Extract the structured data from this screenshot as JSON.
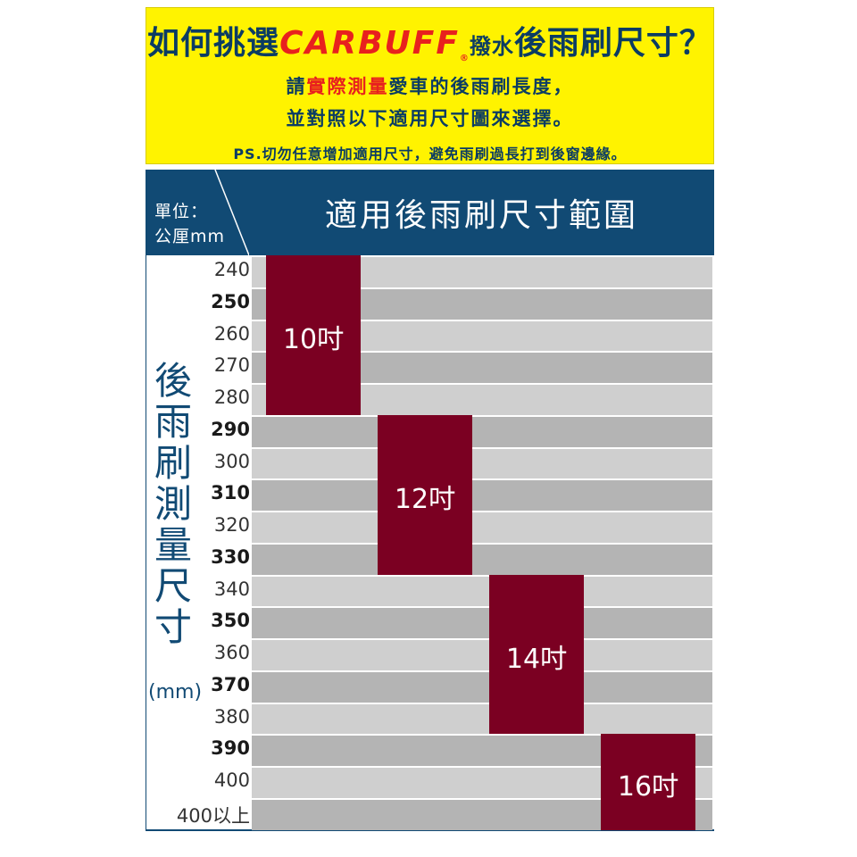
{
  "header": {
    "title_pre": "如何挑選",
    "brand": "CARBUFF",
    "brand_mark": "®",
    "title_mid": "撥水",
    "title_post": "後雨刷尺寸？",
    "line1_pre": "請",
    "line1_hl": "實際測量",
    "line1_post": "愛車的後雨刷長度，",
    "line2": "並對照以下適用尺寸圖來選擇。",
    "note": "PS.切勿任意增加適用尺寸，避免雨刷過長打到後窗邊緣。"
  },
  "table": {
    "unit_line1": "單位：",
    "unit_line2": "公厘mm",
    "title": "適用後雨刷尺寸範圍",
    "vertical_label": [
      "後",
      "雨",
      "刷",
      "測",
      "量",
      "尺",
      "寸"
    ],
    "vertical_unit": "(mm)",
    "rows": [
      "240",
      "250",
      "260",
      "270",
      "280",
      "290",
      "300",
      "310",
      "320",
      "330",
      "340",
      "350",
      "360",
      "370",
      "380",
      "390",
      "400",
      "400以上"
    ],
    "blocks": [
      {
        "label": "10吋",
        "from": "240",
        "to": "280"
      },
      {
        "label": "12吋",
        "from": "290",
        "to": "330"
      },
      {
        "label": "14吋",
        "from": "340",
        "to": "380"
      },
      {
        "label": "16吋",
        "from": "390",
        "to": "400以上"
      }
    ]
  },
  "colors": {
    "banner_bg": "#fff300",
    "navy": "#114a74",
    "accent_red": "#e8211e",
    "block": "#7b0022",
    "row_light": "#cfcfcf",
    "row_dark": "#b4b4b4"
  }
}
